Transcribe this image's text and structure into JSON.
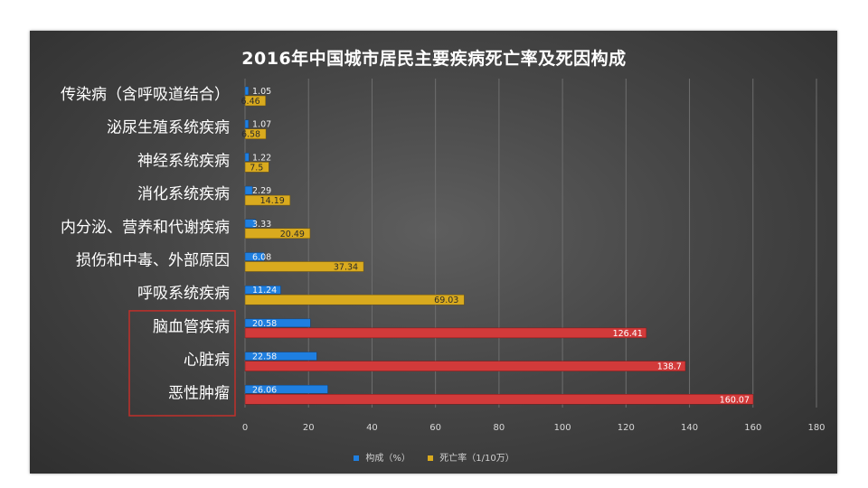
{
  "chart_data": {
    "type": "bar",
    "orientation": "horizontal",
    "title": "2016年中国城市居民主要疾病死亡率及死因构成",
    "categories": [
      "传染病（含呼吸道结合）",
      "泌尿生殖系统疾病",
      "神经系统疾病",
      "消化系统疾病",
      "内分泌、营养和代谢疾病",
      "损伤和中毒、外部原因",
      "呼吸系统疾病",
      "脑血管疾病",
      "心脏病",
      "恶性肿瘤"
    ],
    "series": [
      {
        "name": "构成（%）",
        "color": "#1f7fe0",
        "values": [
          1.05,
          1.07,
          1.22,
          2.29,
          3.33,
          6.08,
          11.24,
          20.58,
          22.58,
          26.06
        ],
        "labels": [
          "1.05",
          "1.07",
          "1.22",
          "2.29",
          "3.33",
          "6.08",
          "11.24",
          "20.58",
          "22.58",
          "26.06"
        ]
      },
      {
        "name": "死亡率（1/10万）",
        "color": "#d9aa1e",
        "values": [
          6.46,
          6.58,
          7.5,
          14.19,
          20.49,
          37.34,
          69.03,
          126.41,
          138.7,
          160.07
        ],
        "labels": [
          "6.46",
          "6.58",
          "7.5",
          "14.19",
          "20.49",
          "37.34",
          "69.03",
          "126.41",
          "138.7",
          "160.07"
        ]
      }
    ],
    "highlight_color": "#d23a3a",
    "highlighted_categories": [
      "脑血管疾病",
      "心脏病",
      "恶性肿瘤"
    ],
    "xlim": [
      0,
      180
    ],
    "xticks": [
      "0",
      "20",
      "40",
      "60",
      "80",
      "100",
      "120",
      "140",
      "160",
      "180"
    ],
    "grid": true,
    "legend_position": "bottom"
  }
}
